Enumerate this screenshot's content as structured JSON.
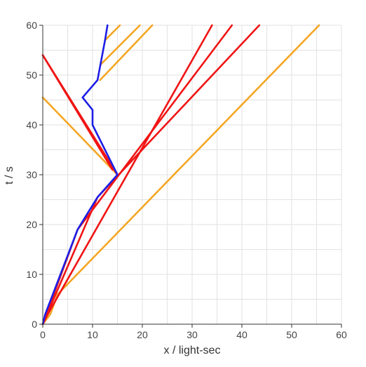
{
  "chart_data": {
    "type": "line",
    "xlabel": "x / light-sec",
    "ylabel": "t / s",
    "xlim": [
      0,
      60
    ],
    "ylim": [
      0,
      60
    ],
    "x_ticks": [
      0,
      10,
      20,
      30,
      40,
      50,
      60
    ],
    "y_ticks": [
      0,
      10,
      20,
      30,
      40,
      50,
      60
    ],
    "minor_grid_step": 5,
    "grid": true,
    "legend": "none",
    "colors": {
      "orange": "#f5a623",
      "red": "#f01414",
      "blue": "#1e1ee6"
    },
    "series": [
      {
        "color": "orange",
        "points": [
          [
            0,
            0
          ],
          [
            1.5,
            2
          ],
          [
            3,
            6
          ],
          [
            55.5,
            60
          ]
        ]
      },
      {
        "color": "orange",
        "points": [
          [
            0,
            45.5
          ],
          [
            15,
            30
          ]
        ]
      },
      {
        "color": "orange",
        "points": [
          [
            11.5,
            49
          ],
          [
            22,
            60
          ]
        ]
      },
      {
        "color": "orange",
        "points": [
          [
            11.5,
            52
          ],
          [
            19.5,
            60
          ]
        ]
      },
      {
        "color": "orange",
        "points": [
          [
            12.5,
            57
          ],
          [
            15.5,
            60
          ]
        ]
      },
      {
        "color": "red",
        "points": [
          [
            0,
            0
          ],
          [
            1,
            2
          ],
          [
            34,
            60
          ]
        ]
      },
      {
        "color": "red",
        "points": [
          [
            0,
            0
          ],
          [
            7,
            19
          ],
          [
            38,
            60
          ]
        ]
      },
      {
        "color": "red",
        "points": [
          [
            0,
            0
          ],
          [
            11,
            25.5
          ],
          [
            43.5,
            60
          ]
        ]
      },
      {
        "color": "red",
        "points": [
          [
            0,
            54
          ],
          [
            15,
            30
          ]
        ]
      },
      {
        "color": "red",
        "points": [
          [
            0,
            54
          ],
          [
            14,
            31
          ]
        ]
      },
      {
        "color": "blue",
        "points": [
          [
            0,
            0
          ],
          [
            0.5,
            2
          ],
          [
            7,
            19
          ],
          [
            11,
            25.5
          ],
          [
            15,
            30
          ],
          [
            10,
            40
          ],
          [
            10,
            43
          ],
          [
            8,
            45.5
          ],
          [
            11,
            49
          ],
          [
            12.5,
            57
          ],
          [
            13,
            60
          ]
        ]
      }
    ]
  }
}
